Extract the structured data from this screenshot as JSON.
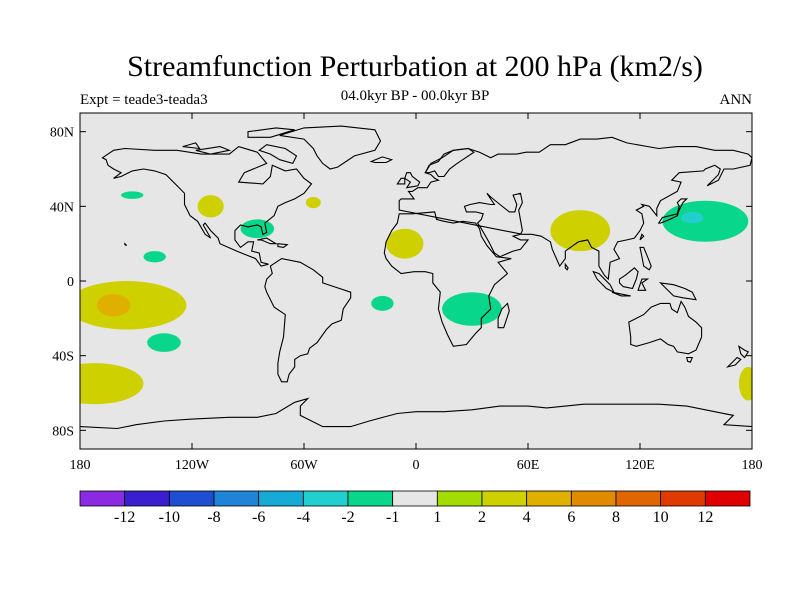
{
  "title": "Streamfunction Perturbation at 200 hPa (km2/s)",
  "subtitle": "04.0kyr BP - 00.0kyr BP",
  "left_label": "Expt = teade3-teada3",
  "right_label": "ANN",
  "axes": {
    "lat_ticks": [
      {
        "value": 80,
        "label": "80N"
      },
      {
        "value": 40,
        "label": "40N"
      },
      {
        "value": 0,
        "label": "0"
      },
      {
        "value": -40,
        "label": "40S"
      },
      {
        "value": -80,
        "label": "80S"
      }
    ],
    "lon_ticks": [
      {
        "value": -180,
        "label": "180"
      },
      {
        "value": -120,
        "label": "120W"
      },
      {
        "value": -60,
        "label": "60W"
      },
      {
        "value": 0,
        "label": "0"
      },
      {
        "value": 60,
        "label": "60E"
      },
      {
        "value": 120,
        "label": "120E"
      },
      {
        "value": 180,
        "label": "180"
      }
    ]
  },
  "colorbar": {
    "colors": [
      "#8a2be2",
      "#3a1fd0",
      "#1f4fd0",
      "#1f84d8",
      "#16abd6",
      "#22cfcf",
      "#08d68a",
      "#e6e6e6",
      "#a3dc00",
      "#cfd000",
      "#dfb000",
      "#e08a00",
      "#e06600",
      "#e03a00",
      "#e00000"
    ],
    "labels": [
      "-12",
      "-10",
      "-8",
      "-6",
      "-4",
      "-2",
      "-1",
      "1",
      "2",
      "4",
      "6",
      "8",
      "10",
      "12"
    ]
  },
  "map_colors": {
    "background": "#e6e6e6",
    "coast": "#000000"
  },
  "chart_data": {
    "type": "heatmap",
    "title": "Streamfunction Perturbation at 200 hPa (km2/s)",
    "units": "km2/s",
    "x_range": [
      -180,
      180
    ],
    "y_range": [
      -90,
      90
    ],
    "levels": [
      -12,
      -10,
      -8,
      -6,
      -4,
      -2,
      -1,
      1,
      2,
      4,
      6,
      8,
      10,
      12
    ],
    "anomalies": [
      {
        "lon": -155,
        "lat": -13,
        "rx": 32,
        "ry": 13,
        "value": 2
      },
      {
        "lon": -162,
        "lat": -13,
        "rx": 9,
        "ry": 6,
        "value": 4
      },
      {
        "lon": -172,
        "lat": -55,
        "rx": 26,
        "ry": 11,
        "value": 2
      },
      {
        "lon": -135,
        "lat": -33,
        "rx": 9,
        "ry": 5,
        "value": -2
      },
      {
        "lon": -140,
        "lat": 13,
        "rx": 6,
        "ry": 3,
        "value": -2
      },
      {
        "lon": -152,
        "lat": 46,
        "rx": 6,
        "ry": 2,
        "value": -2
      },
      {
        "lon": -110,
        "lat": 40,
        "rx": 7,
        "ry": 6,
        "value": 2
      },
      {
        "lon": -85,
        "lat": 28,
        "rx": 9,
        "ry": 5,
        "value": -2
      },
      {
        "lon": -55,
        "lat": 42,
        "rx": 4,
        "ry": 3,
        "value": 2
      },
      {
        "lon": -6,
        "lat": 20,
        "rx": 10,
        "ry": 8,
        "value": 2
      },
      {
        "lon": -18,
        "lat": -12,
        "rx": 6,
        "ry": 4,
        "value": -2
      },
      {
        "lon": 88,
        "lat": 27,
        "rx": 16,
        "ry": 11,
        "value": 2
      },
      {
        "lon": 155,
        "lat": 32,
        "rx": 23,
        "ry": 11,
        "value": -2
      },
      {
        "lon": 148,
        "lat": 34,
        "rx": 6,
        "ry": 3,
        "value": -4
      },
      {
        "lon": 30,
        "lat": -15,
        "rx": 16,
        "ry": 9,
        "value": -2
      },
      {
        "lon": 178,
        "lat": -55,
        "rx": 5,
        "ry": 9,
        "value": 2
      }
    ]
  }
}
